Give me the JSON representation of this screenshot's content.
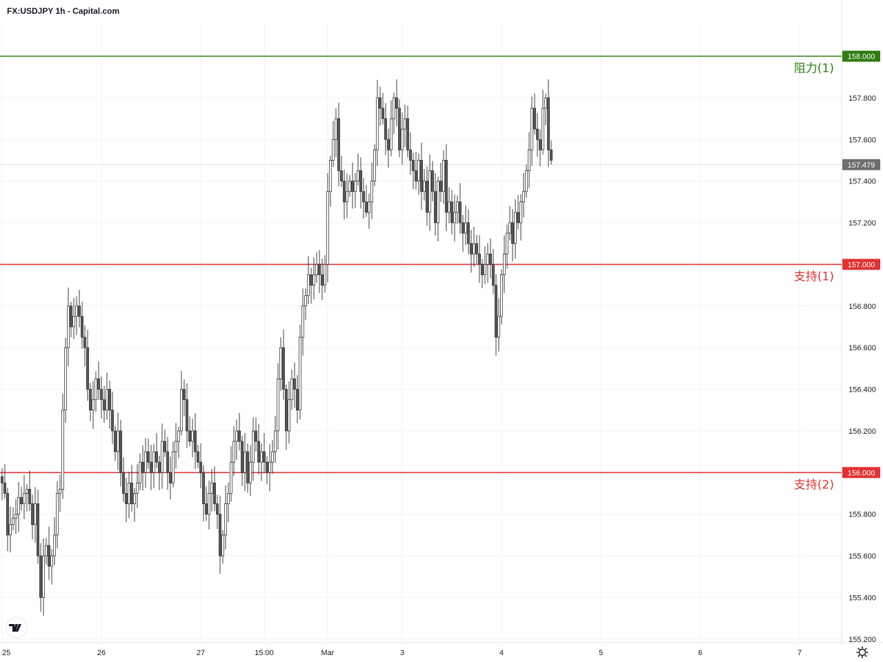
{
  "header": {
    "title": "FX:USDJPY 1h - Capital.com"
  },
  "colors": {
    "resistance": "#2e7d12",
    "support": "#e03333",
    "candle_up_fill": "#ffffff",
    "candle_down_fill": "#595959",
    "candle_outline": "#3a3a3a",
    "grid": "#f0f3fa",
    "price_tag": "#6e6e6e"
  },
  "icons": {
    "logo": "tradingview-logo-icon",
    "settings": "gear-icon"
  },
  "current_price_label": "157.479",
  "chart_data": {
    "type": "candlestick",
    "title": "FX:USDJPY 1h - Capital.com",
    "yrange": [
      155.09,
      158.27
    ],
    "grid": true,
    "y_ticks": [
      "155.200",
      "155.400",
      "155.600",
      "155.800",
      "156.000",
      "156.200",
      "156.400",
      "156.600",
      "156.800",
      "157.000",
      "157.200",
      "157.400",
      "157.600",
      "157.800",
      "158.000"
    ],
    "x_ticks": [
      {
        "label": "25",
        "i": 0
      },
      {
        "label": "26",
        "i": 36
      },
      {
        "label": "27",
        "i": 72
      },
      {
        "label": "15:00",
        "i": 95
      },
      {
        "label": "Mar",
        "i": 118
      },
      {
        "label": "3",
        "i": 145
      },
      {
        "label": "4",
        "i": 181
      },
      {
        "label": "5",
        "i": 217
      },
      {
        "label": "6",
        "i": 253
      },
      {
        "label": "7",
        "i": 289
      }
    ],
    "levels": [
      {
        "name": "阻力(1)",
        "value": 158.0,
        "value_label": "158.000",
        "kind": "resistance"
      },
      {
        "name": "支持(1)",
        "value": 157.0,
        "value_label": "157.000",
        "kind": "support"
      },
      {
        "name": "支持(2)",
        "value": 156.0,
        "value_label": "156.000",
        "kind": "support"
      }
    ],
    "current_price": 157.479,
    "closes": [
      155.95,
      155.9,
      155.7,
      155.75,
      155.78,
      155.8,
      155.88,
      155.85,
      155.9,
      155.92,
      155.85,
      155.75,
      155.85,
      155.6,
      155.4,
      155.6,
      155.65,
      155.55,
      155.6,
      155.7,
      155.9,
      155.92,
      156.3,
      156.6,
      156.8,
      156.7,
      156.75,
      156.8,
      156.75,
      156.65,
      156.6,
      156.4,
      156.3,
      156.35,
      156.45,
      156.4,
      156.35,
      156.3,
      156.4,
      156.3,
      156.2,
      156.1,
      156.2,
      156.0,
      155.9,
      155.85,
      155.95,
      155.85,
      155.9,
      155.95,
      156.05,
      156.0,
      156.1,
      156.05,
      156.0,
      156.1,
      156.05,
      156.0,
      156.15,
      156.1,
      156.0,
      155.95,
      156.1,
      156.15,
      156.2,
      156.4,
      156.35,
      156.2,
      156.15,
      156.2,
      156.1,
      156.05,
      156.0,
      155.85,
      155.8,
      155.9,
      155.95,
      155.85,
      155.8,
      155.6,
      155.7,
      155.85,
      155.9,
      156.05,
      156.15,
      156.2,
      156.15,
      156.0,
      156.1,
      155.95,
      156.05,
      156.2,
      156.15,
      156.05,
      156.1,
      156.05,
      156.0,
      156.05,
      156.1,
      156.2,
      156.45,
      156.6,
      156.4,
      156.2,
      156.35,
      156.45,
      156.4,
      156.3,
      156.65,
      156.8,
      156.85,
      156.95,
      156.9,
      156.95,
      157.0,
      156.95,
      156.9,
      157.0,
      157.35,
      157.5,
      157.6,
      157.7,
      157.45,
      157.4,
      157.3,
      157.35,
      157.4,
      157.35,
      157.4,
      157.45,
      157.35,
      157.3,
      157.25,
      157.3,
      157.4,
      157.55,
      157.8,
      157.75,
      157.7,
      157.6,
      157.55,
      157.7,
      157.8,
      157.75,
      157.55,
      157.65,
      157.7,
      157.55,
      157.5,
      157.45,
      157.4,
      157.5,
      157.35,
      157.4,
      157.25,
      157.45,
      157.35,
      157.2,
      157.4,
      157.35,
      157.5,
      157.25,
      157.3,
      157.2,
      157.25,
      157.3,
      157.2,
      157.15,
      157.2,
      157.1,
      157.05,
      157.1,
      157.05,
      157.0,
      156.95,
      157.0,
      157.05,
      157.0,
      156.9,
      156.65,
      156.75,
      156.95,
      157.05,
      157.15,
      157.2,
      157.1,
      157.25,
      157.2,
      157.3,
      157.35,
      157.45,
      157.55,
      157.75,
      157.65,
      157.6,
      157.55,
      157.75,
      157.8,
      157.55,
      157.5
    ],
    "first_open": 155.98,
    "label_dates": [
      "25",
      "26",
      "27",
      "Mar",
      "3",
      "4",
      "5",
      "6",
      "7"
    ]
  }
}
